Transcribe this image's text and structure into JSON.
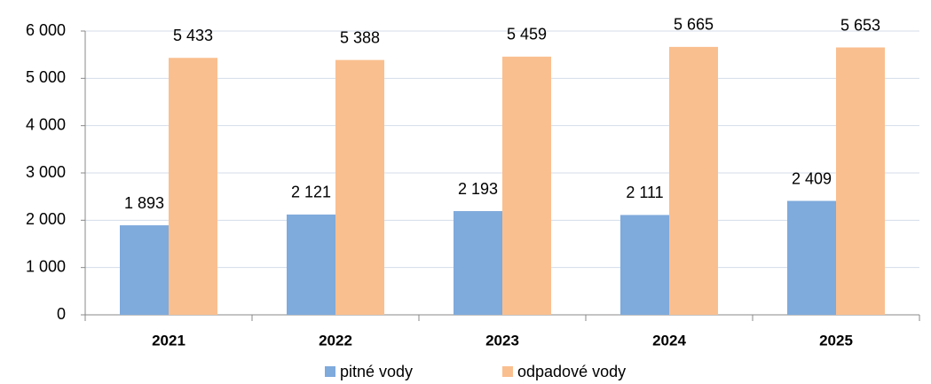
{
  "chart_data": {
    "type": "bar",
    "categories": [
      "2021",
      "2022",
      "2023",
      "2024",
      "2025"
    ],
    "series": [
      {
        "name": "pitné vody",
        "color": "#7faadc",
        "values": [
          1893,
          2121,
          2193,
          2111,
          2409
        ],
        "value_labels": [
          "1 893",
          "2 121",
          "2 193",
          "2 111",
          "2 409"
        ]
      },
      {
        "name": "odpadové vody",
        "color": "#fabf8f",
        "values": [
          5433,
          5388,
          5459,
          5665,
          5653
        ],
        "value_labels": [
          "5 433",
          "5 388",
          "5 459",
          "5 665",
          "5 653"
        ]
      }
    ],
    "ylim": [
      0,
      6000
    ],
    "yticks": [
      {
        "value": 0,
        "label": "0"
      },
      {
        "value": 1000,
        "label": "1 000"
      },
      {
        "value": 2000,
        "label": "2 000"
      },
      {
        "value": 3000,
        "label": "3 000"
      },
      {
        "value": 4000,
        "label": "4 000"
      },
      {
        "value": 5000,
        "label": "5 000"
      },
      {
        "value": 6000,
        "label": "6 000"
      }
    ],
    "grid": true,
    "legend": "bottom"
  }
}
